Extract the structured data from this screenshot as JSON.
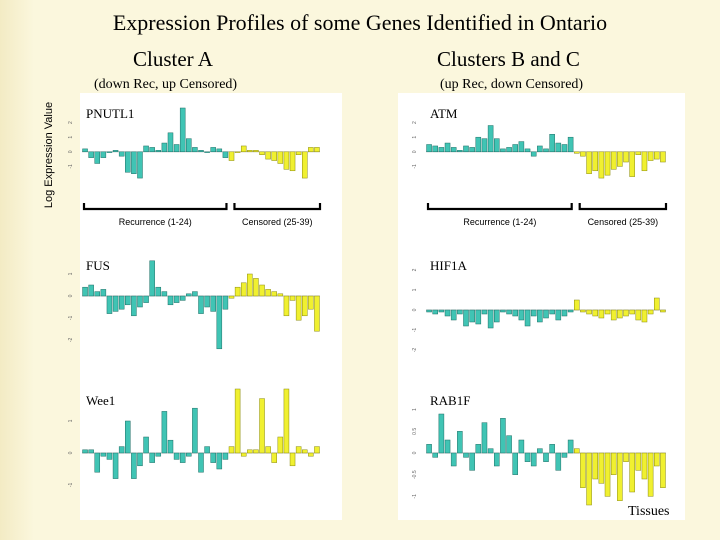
{
  "title": "Expression Profiles of some Genes Identified in Ontario",
  "cluster_a": {
    "title": "Cluster A",
    "subtitle": "(down Rec, up Censored)"
  },
  "cluster_bc": {
    "title": "Clusters B and C",
    "subtitle": "(up Rec, down Censored)"
  },
  "ylabel": "Log Expression Value",
  "xlabel": "Tissues",
  "bracket_labels": {
    "recurrence": "Recurrence (1-24)",
    "censored": "Censored (25-39)"
  },
  "colors": {
    "recurrence": "#40c4b4",
    "censored": "#f0f030",
    "background": "#fbf7dd"
  },
  "chart_data": [
    {
      "type": "bar",
      "gene": "PNUTL1",
      "cluster": "A",
      "ylim": [
        -2,
        3
      ],
      "ticks": [
        -1,
        0,
        1,
        2
      ],
      "rec_n": 24,
      "values": [
        0.2,
        -0.4,
        -0.8,
        -0.4,
        0,
        0.1,
        -0.3,
        -1.4,
        -1.5,
        -1.8,
        0.4,
        0.3,
        0.1,
        0.6,
        1.3,
        0.5,
        3.0,
        0.9,
        0.3,
        0.1,
        0,
        0.3,
        0.2,
        -0.4,
        -0.6,
        0,
        0.4,
        0.1,
        0.1,
        -0.2,
        -0.5,
        -0.6,
        -0.8,
        -1.2,
        -1.3,
        -0.2,
        -1.8,
        0.3,
        0.3
      ]
    },
    {
      "type": "bar",
      "gene": "ATM",
      "cluster": "BC",
      "ylim": [
        -2,
        3
      ],
      "ticks": [
        -1,
        0,
        1,
        2
      ],
      "rec_n": 24,
      "values": [
        0.5,
        0.4,
        0.3,
        0.6,
        0.3,
        0.1,
        0.4,
        0.3,
        1.0,
        0.9,
        1.8,
        0.9,
        0.2,
        0.3,
        0.5,
        0.7,
        0.2,
        -0.3,
        0.4,
        0.2,
        1.2,
        0.6,
        0.5,
        1.0,
        -0.1,
        -0.3,
        -1.5,
        -1.3,
        -1.8,
        -1.6,
        -1.2,
        -1.0,
        -0.7,
        -1.7,
        -0.2,
        -1.3,
        -0.6,
        -0.5,
        -0.7
      ]
    },
    {
      "type": "bar",
      "gene": "FUS",
      "cluster": "A",
      "ylim": [
        -3,
        2
      ],
      "ticks": [
        -2,
        -1,
        0,
        1
      ],
      "rec_n": 24,
      "values": [
        0.4,
        0.5,
        0.2,
        0.3,
        -0.8,
        -0.7,
        -0.6,
        -0.4,
        -0.9,
        -0.5,
        -0.3,
        1.6,
        0.4,
        0.2,
        -0.4,
        -0.3,
        -0.2,
        0.1,
        0.2,
        -0.8,
        -0.5,
        -0.7,
        -2.4,
        -0.6,
        -0.1,
        0.4,
        0.6,
        1.0,
        0.8,
        0.5,
        0.3,
        0.2,
        0.1,
        -0.9,
        -0.2,
        -1.1,
        -0.9,
        -0.6,
        -1.6
      ]
    },
    {
      "type": "bar",
      "gene": "HIF1A",
      "cluster": "BC",
      "ylim": [
        -2.5,
        2
      ],
      "ticks": [
        -2,
        -1,
        0,
        1,
        2
      ],
      "rec_n": 24,
      "values": [
        -0.1,
        -0.2,
        -0.1,
        -0.3,
        -0.5,
        -0.2,
        -0.8,
        -0.6,
        -0.7,
        -0.2,
        -0.9,
        -0.6,
        -0.1,
        -0.2,
        -0.3,
        -0.5,
        -0.8,
        -0.3,
        -0.6,
        -0.4,
        -0.2,
        -0.5,
        -0.3,
        -0.1,
        0.5,
        -0.1,
        -0.2,
        -0.3,
        -0.4,
        -0.2,
        -0.5,
        -0.4,
        -0.3,
        -0.2,
        -0.5,
        -0.6,
        -0.2,
        0.6,
        -0.1
      ]
    },
    {
      "type": "bar",
      "gene": "Wee1",
      "cluster": "A",
      "ylim": [
        -1.5,
        2
      ],
      "ticks": [
        -1,
        0,
        1
      ],
      "rec_n": 24,
      "values": [
        0.1,
        0.1,
        -0.6,
        -0.1,
        -0.2,
        -0.8,
        0.2,
        1.0,
        -0.8,
        -0.4,
        0.5,
        -0.3,
        -0.1,
        1.3,
        0.4,
        -0.2,
        -0.3,
        -0.1,
        1.4,
        -0.6,
        0.2,
        -0.3,
        -0.5,
        -0.2,
        0.2,
        2.0,
        -0.1,
        0.1,
        0.1,
        1.7,
        0.2,
        -0.3,
        0.5,
        2.0,
        -0.4,
        0.2,
        0.1,
        -0.1,
        0.2
      ]
    },
    {
      "type": "bar",
      "gene": "RAB1F",
      "cluster": "BC",
      "ylim": [
        -1.2,
        1.2
      ],
      "ticks": [
        -1,
        -0.5,
        0,
        0.5,
        1
      ],
      "rec_n": 24,
      "values": [
        0.2,
        -0.1,
        0.9,
        0.3,
        -0.3,
        0.5,
        -0.1,
        -0.4,
        0.2,
        0.7,
        0.1,
        -0.3,
        0.8,
        0.4,
        -0.5,
        0.3,
        -0.2,
        -0.3,
        0.1,
        -0.2,
        0.2,
        -0.4,
        -0.1,
        0.3,
        0.1,
        -0.8,
        -1.2,
        -0.6,
        -0.7,
        -1.0,
        -0.5,
        -1.1,
        -0.2,
        -0.9,
        -0.4,
        -0.6,
        -1.0,
        -0.3,
        -0.8
      ]
    }
  ]
}
